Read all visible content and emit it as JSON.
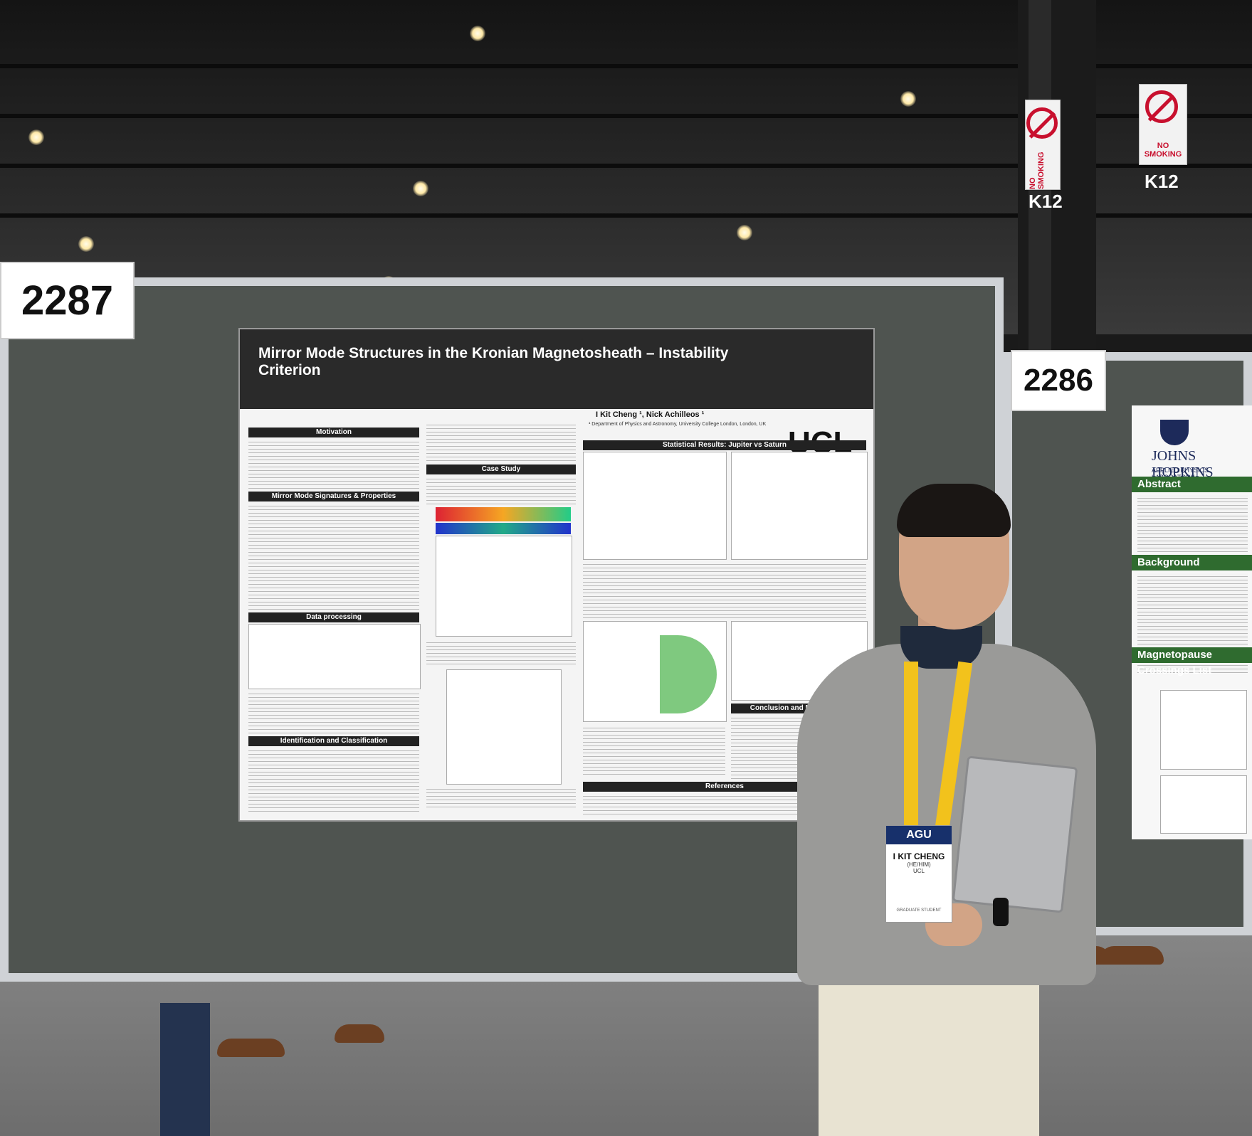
{
  "scene": {
    "booth_numbers": [
      "2287",
      "2286"
    ],
    "pillar_signs": [
      {
        "text": "NO SMOKING",
        "grid": "K12"
      },
      {
        "text": "NO SMOKING",
        "grid": "K12"
      }
    ]
  },
  "poster": {
    "title": "Mirror Mode Structures in the Kronian Magnetosheath – Instability Criterion",
    "authors": "I Kit Cheng ¹, Nick Achilleos ¹",
    "affiliation": "¹ Department of Physics and Astronomy, University College London, London, UK",
    "logo_text": "UCL",
    "sections": [
      "Motivation",
      "Mirror Mode Signatures & Properties",
      "Data processing",
      "Identification and Classification",
      "Case Study",
      "Statistical Results: Jupiter vs Saturn",
      "Conclusion and Future Work",
      "References"
    ]
  },
  "neighbor_poster": {
    "institution": "JOHNS HOPKINS",
    "institution_sub": "APPLIED PHYSICS LABORATORY",
    "sections": [
      "Abstract",
      "Background",
      "Magnetopause Crossings List"
    ]
  },
  "badge": {
    "brand": "AGU",
    "name": "I KIT CHENG",
    "pronouns": "(HE/HIM)",
    "affiliation": "UCL",
    "role": "GRADUATE STUDENT"
  },
  "colors": {
    "board": "#4f5450",
    "poster_header": "#2a2a2a",
    "lanyard": "#f2c21c",
    "badge_brand": "#17306b",
    "neighbor_section": "#2f6b2f"
  }
}
